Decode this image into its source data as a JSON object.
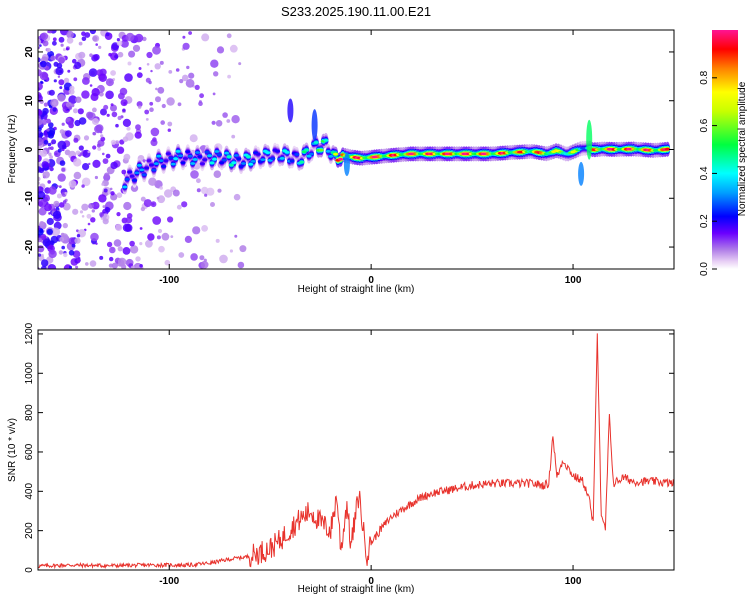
{
  "title": "S233.2025.190.11.00.E21",
  "chart_data": [
    {
      "type": "heatmap",
      "xlabel": "Height of straight line (km)",
      "ylabel": "Frequency (Hz)",
      "xlim": [
        -165,
        150
      ],
      "ylim": [
        -24.5,
        24.5
      ],
      "x_ticks": [
        -100,
        0,
        100
      ],
      "x_tick_labels": [
        "-100",
        "0",
        "100"
      ],
      "y_ticks": [
        -20,
        -10,
        0,
        10,
        20
      ],
      "y_tick_labels": [
        "-20",
        "-10",
        "0",
        "10",
        "20"
      ],
      "colorbar": {
        "label": "Normalized spectral amplitude",
        "range": [
          0,
          1
        ],
        "ticks": [
          0,
          0.2,
          0.4,
          0.6,
          0.8
        ],
        "tick_labels": [
          "0.0",
          "0.2",
          "0.4",
          "0.6",
          "0.8"
        ]
      },
      "ridge": {
        "x": [
          -122,
          -115,
          -105,
          -95,
          -85,
          -75,
          -65,
          -55,
          -45,
          -35,
          -28,
          -22,
          -18,
          -15,
          -10,
          -5,
          0,
          10,
          20,
          30,
          40,
          50,
          60,
          70,
          80,
          87,
          92,
          97,
          100,
          104,
          108,
          110,
          115,
          120,
          130,
          140,
          148
        ],
        "freq": [
          -6.5,
          -4.5,
          -2.5,
          -1.5,
          -1.8,
          -1.5,
          -2.5,
          -1.5,
          -1.0,
          -2.0,
          0.5,
          1.0,
          -2.0,
          -1.0,
          -1.5,
          -1.8,
          -1.6,
          -1.2,
          -0.9,
          -0.9,
          -0.9,
          -0.9,
          -0.9,
          -0.6,
          -0.4,
          -0.9,
          -0.2,
          -1.0,
          -0.5,
          0.2,
          0.3,
          -0.1,
          0.1,
          0.0,
          0.1,
          -0.2,
          0.1
        ],
        "amplitude": [
          0.35,
          0.3,
          0.3,
          0.35,
          0.3,
          0.4,
          0.4,
          0.35,
          0.35,
          0.4,
          0.55,
          0.5,
          0.75,
          0.9,
          0.92,
          0.9,
          0.9,
          0.88,
          0.9,
          0.92,
          0.95,
          0.93,
          0.9,
          0.85,
          0.8,
          0.85,
          0.65,
          0.7,
          0.65,
          0.45,
          0.5,
          0.85,
          0.9,
          0.92,
          0.9,
          0.88,
          0.85
        ]
      }
    },
    {
      "type": "line",
      "xlabel": "Height of straight line (km)",
      "ylabel": "SNR (10 * v/v)",
      "xlim": [
        -165,
        150
      ],
      "ylim": [
        0,
        1220
      ],
      "x_ticks": [
        -100,
        0,
        100
      ],
      "x_tick_labels": [
        "-100",
        "0",
        "100"
      ],
      "y_ticks": [
        0,
        200,
        400,
        600,
        800,
        1000,
        1200
      ],
      "y_tick_labels": [
        "0",
        "200",
        "400",
        "600",
        "800",
        "1000",
        "1200"
      ],
      "line_color": "#e8332d",
      "series": [
        {
          "x": [
            -165,
            -150,
            -130,
            -110,
            -90,
            -80,
            -70,
            -60,
            -55,
            -50,
            -45,
            -40,
            -35,
            -30,
            -25,
            -20,
            -17,
            -15,
            -12,
            -10,
            -6,
            -4,
            -2,
            0,
            5,
            10,
            15,
            20,
            25,
            30,
            40,
            50,
            60,
            70,
            80,
            85,
            88,
            90,
            92,
            95,
            100,
            105,
            108,
            110,
            112,
            114,
            116,
            118,
            120,
            125,
            130,
            140,
            150
          ],
          "y": [
            20,
            25,
            22,
            25,
            25,
            35,
            55,
            70,
            90,
            110,
            150,
            210,
            260,
            300,
            240,
            200,
            380,
            100,
            340,
            120,
            390,
            210,
            80,
            140,
            210,
            270,
            305,
            340,
            370,
            390,
            410,
            430,
            440,
            440,
            440,
            430,
            440,
            690,
            470,
            560,
            480,
            450,
            360,
            230,
            1220,
            260,
            210,
            780,
            440,
            470,
            450,
            450,
            440
          ]
        }
      ]
    }
  ]
}
